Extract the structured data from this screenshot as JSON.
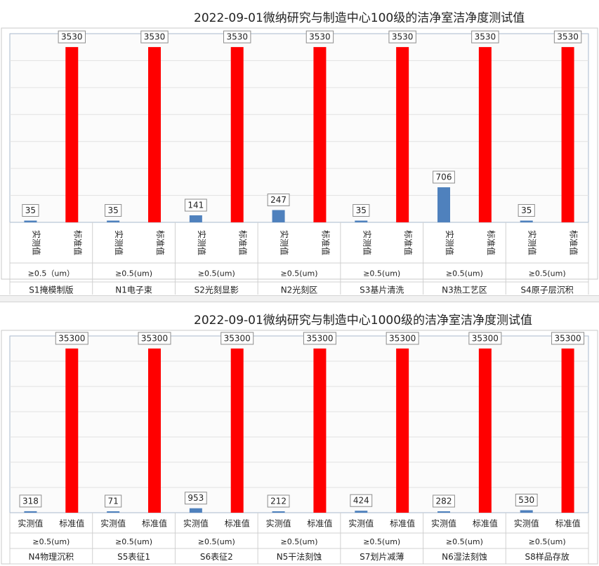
{
  "chart_data": [
    {
      "type": "bar",
      "title": "2022-09-01微纳研究与制造中心100级的洁净室洁净度测试值",
      "series_labels": [
        "实测值",
        "标准值"
      ],
      "colors": {
        "measured": "#4f81bd",
        "standard": "#ff0000"
      },
      "ylim": [
        0,
        3800
      ],
      "grid": true,
      "groups": [
        {
          "particle": "≥0.5（um）",
          "room": "S1掩模制版",
          "measured": 35,
          "standard": 3530
        },
        {
          "particle": "≥0.5(um)",
          "room": "N1电子束",
          "measured": 35,
          "standard": 3530
        },
        {
          "particle": "≥0.5(um)",
          "room": "S2光刻显影",
          "measured": 141,
          "standard": 3530
        },
        {
          "particle": "≥0.5(um)",
          "room": "N2光刻区",
          "measured": 247,
          "standard": 3530
        },
        {
          "particle": "≥0.5(um)",
          "room": "S3基片清洗",
          "measured": 35,
          "standard": 3530
        },
        {
          "particle": "≥0.5(um)",
          "room": "N3热工艺区",
          "measured": 706,
          "standard": 3530
        },
        {
          "particle": "≥0.5(um)",
          "room": "S4原子层沉积",
          "measured": 35,
          "standard": 3530
        }
      ]
    },
    {
      "type": "bar",
      "title": "2022-09-01微纳研究与制造中心1000级的洁净室洁净度测试值",
      "series_labels": [
        "实测值",
        "标准值"
      ],
      "colors": {
        "measured": "#4f81bd",
        "standard": "#ff0000"
      },
      "ylim": [
        0,
        38000
      ],
      "grid": true,
      "groups": [
        {
          "particle": "≥0.5(um)",
          "room": "N4物理沉积",
          "measured": 318,
          "standard": 35300
        },
        {
          "particle": "≥0.5(um)",
          "room": "S5表征1",
          "measured": 71,
          "standard": 35300
        },
        {
          "particle": "≥0.5(um)",
          "room": "S6表征2",
          "measured": 953,
          "standard": 35300
        },
        {
          "particle": "≥0.5(um)",
          "room": "N5干法刻蚀",
          "measured": 212,
          "standard": 35300
        },
        {
          "particle": "≥0.5(um)",
          "room": "S7划片减薄",
          "measured": 424,
          "standard": 35300
        },
        {
          "particle": "≥0.5(um)",
          "room": "N6湿法刻蚀",
          "measured": 282,
          "standard": 35300
        },
        {
          "particle": "≥0.5(um)",
          "room": "S8样品存放",
          "measured": 530,
          "standard": 35300
        }
      ]
    }
  ]
}
